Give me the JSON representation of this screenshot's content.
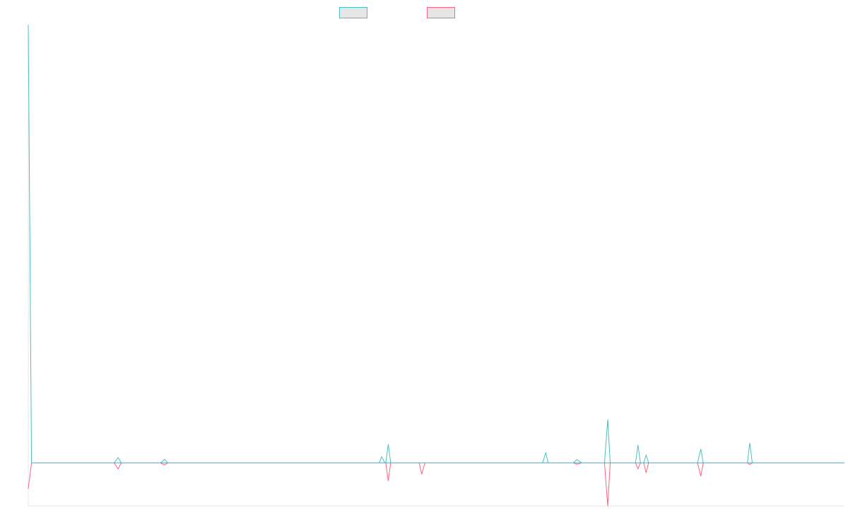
{
  "chart_data": {
    "type": "line",
    "title": "",
    "xlabel": "",
    "ylabel": "",
    "legend": "top-center",
    "grid": false,
    "x": [
      0,
      0.083,
      0.108,
      0.167,
      0.189,
      0.442,
      0.461,
      0.483,
      0.535,
      0.647,
      0.706,
      0.75,
      0.775,
      0.772,
      0.794,
      0.894,
      0.913,
      0.928,
      1.0
    ],
    "series": [
      {
        "name": "",
        "color": "#4bc0c0",
        "points": [
          [
            0,
            1010
          ],
          [
            0.004,
            0
          ],
          [
            0.105,
            0
          ],
          [
            0.11,
            12
          ],
          [
            0.114,
            0
          ],
          [
            0.162,
            0
          ],
          [
            0.167,
            8
          ],
          [
            0.171,
            0
          ],
          [
            0.43,
            0
          ],
          [
            0.433,
            14
          ],
          [
            0.437,
            0
          ],
          [
            0.438,
            0
          ],
          [
            0.441,
            43
          ],
          [
            0.444,
            0
          ],
          [
            0.63,
            0
          ],
          [
            0.634,
            23
          ],
          [
            0.637,
            0
          ],
          [
            0.668,
            0
          ],
          [
            0.672,
            8
          ],
          [
            0.678,
            0
          ],
          [
            0.706,
            0
          ],
          [
            0.71,
            100
          ],
          [
            0.713,
            0
          ],
          [
            0.744,
            0
          ],
          [
            0.747,
            41
          ],
          [
            0.75,
            0
          ],
          [
            0.754,
            0
          ],
          [
            0.757,
            18
          ],
          [
            0.76,
            0
          ],
          [
            0.82,
            0
          ],
          [
            0.824,
            32
          ],
          [
            0.827,
            0
          ],
          [
            0.881,
            0
          ],
          [
            0.884,
            46
          ],
          [
            0.887,
            0
          ],
          [
            1,
            0
          ]
        ]
      },
      {
        "name": "",
        "color": "#ff6384",
        "points": [
          [
            0,
            -60
          ],
          [
            0.004,
            0
          ],
          [
            0.105,
            0
          ],
          [
            0.11,
            -14
          ],
          [
            0.114,
            0
          ],
          [
            0.162,
            0
          ],
          [
            0.167,
            -5
          ],
          [
            0.171,
            0
          ],
          [
            0.438,
            0
          ],
          [
            0.441,
            -42
          ],
          [
            0.444,
            0
          ],
          [
            0.479,
            0
          ],
          [
            0.482,
            -26
          ],
          [
            0.486,
            0
          ],
          [
            0.668,
            0
          ],
          [
            0.672,
            -3
          ],
          [
            0.678,
            0
          ],
          [
            0.706,
            0
          ],
          [
            0.71,
            -100
          ],
          [
            0.713,
            0
          ],
          [
            0.744,
            0
          ],
          [
            0.747,
            -14
          ],
          [
            0.75,
            0
          ],
          [
            0.754,
            0
          ],
          [
            0.757,
            -23
          ],
          [
            0.76,
            0
          ],
          [
            0.82,
            0
          ],
          [
            0.824,
            -31
          ],
          [
            0.827,
            0
          ],
          [
            0.881,
            0
          ],
          [
            0.884,
            -4
          ],
          [
            0.887,
            0
          ],
          [
            1,
            0
          ]
        ]
      }
    ],
    "ylim": [
      -100,
      1010
    ]
  }
}
